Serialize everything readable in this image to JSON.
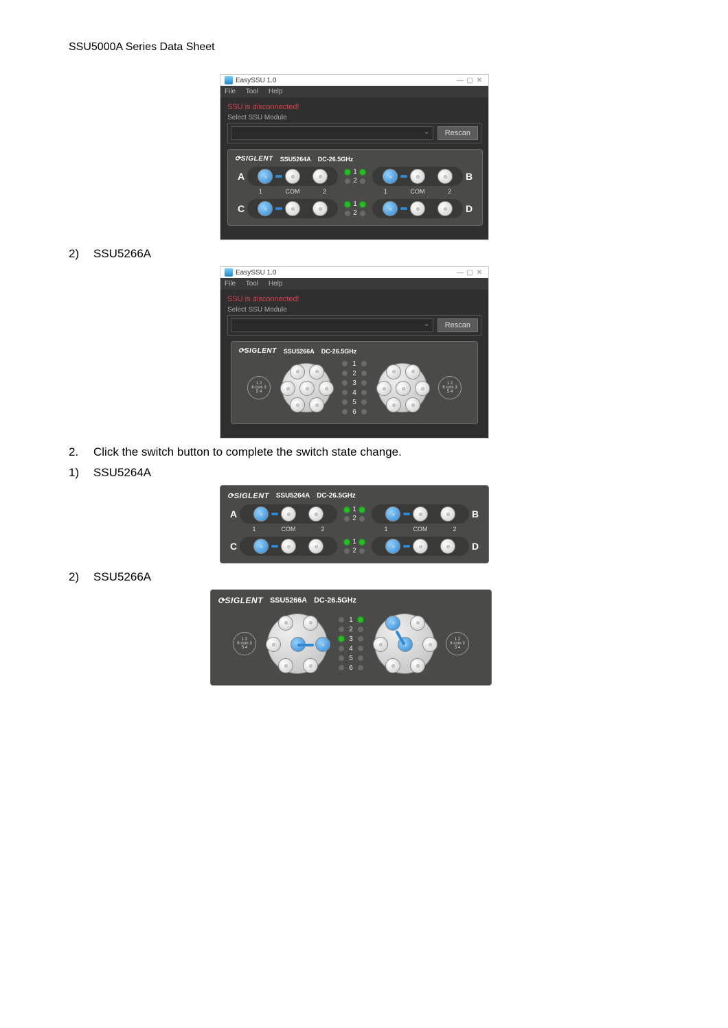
{
  "header": "SSU5000A Series Data Sheet",
  "app": {
    "title": "EasySSU 1.0",
    "menus": [
      "File",
      "Tool",
      "Help"
    ],
    "warn": "SSU is disconnected!",
    "select_label": "Select SSU Module",
    "rescan": "Rescan"
  },
  "brand": "SIGLENT",
  "spec": "DC-26.5GHz",
  "p5264": {
    "model": "SSU5264A",
    "ch": [
      "A",
      "B",
      "C",
      "D"
    ],
    "sub": [
      "1",
      "COM",
      "2"
    ]
  },
  "p5266": {
    "model": "SSU5266A",
    "idx": [
      "1",
      "2",
      "3",
      "4",
      "5",
      "6"
    ],
    "badge": "1  2\n6 com 3\n5  4"
  },
  "section_labels": {
    "s2_1": "2)",
    "s2_1t": "SSU5266A",
    "step2n": "2.",
    "step2t": "Click the switch button to complete the switch state change.",
    "s1": "1)",
    "s1t": "SSU5264A",
    "s2": "2)",
    "s2t": "SSU5266A"
  },
  "state": {
    "win1_5264": {
      "A": [
        1,
        0,
        1,
        0
      ],
      "B": [
        1,
        0,
        1,
        0
      ]
    },
    "win2_5266": {
      "L": [
        0,
        0,
        0,
        0,
        0,
        0
      ],
      "R": [
        0,
        0,
        0,
        0,
        0,
        0
      ]
    },
    "large_5264": {
      "A": [
        1,
        0,
        1,
        0
      ],
      "B": [
        1,
        0,
        1,
        0
      ]
    },
    "xl_5266": {
      "L": [
        0,
        0,
        1,
        0,
        0,
        0
      ],
      "R": [
        1,
        0,
        0,
        0,
        0,
        0
      ]
    }
  }
}
